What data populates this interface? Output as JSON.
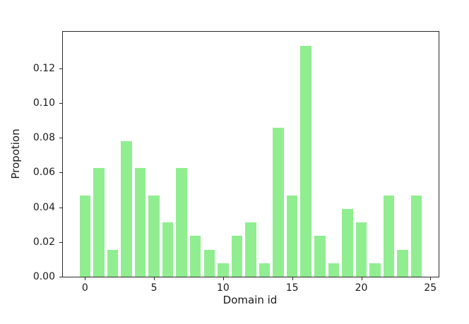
{
  "chart_data": {
    "type": "bar",
    "title": "",
    "xlabel": "Domain id",
    "ylabel": "Propotion",
    "x": [
      0,
      1,
      2,
      3,
      4,
      5,
      6,
      7,
      8,
      9,
      10,
      11,
      12,
      13,
      14,
      15,
      16,
      17,
      18,
      19,
      20,
      21,
      22,
      23,
      24
    ],
    "values": [
      0.046875,
      0.0625,
      0.015625,
      0.078125,
      0.0625,
      0.046875,
      0.03125,
      0.0625,
      0.0234375,
      0.015625,
      0.0078125,
      0.0234375,
      0.03125,
      0.0078125,
      0.0859375,
      0.046875,
      0.1328125,
      0.0234375,
      0.0078125,
      0.0390625,
      0.03125,
      0.0078125,
      0.046875,
      0.015625,
      0.046875
    ],
    "bar_width": 0.8,
    "bar_color": "#90EE90",
    "axis_color": "#2b2b2b",
    "text_color": "#1a1a1a",
    "xlim": [
      -1.6,
      25.6
    ],
    "ylim": [
      0,
      0.141
    ],
    "xticks": [
      0,
      5,
      10,
      15,
      20,
      25
    ],
    "xtick_labels": [
      "0",
      "5",
      "10",
      "15",
      "20",
      "25"
    ],
    "yticks": [
      0,
      0.02,
      0.04,
      0.06,
      0.08,
      0.1,
      0.12
    ],
    "ytick_labels": [
      "0.00",
      "0.02",
      "0.04",
      "0.06",
      "0.08",
      "0.10",
      "0.12"
    ],
    "grid": false,
    "legend": null
  }
}
